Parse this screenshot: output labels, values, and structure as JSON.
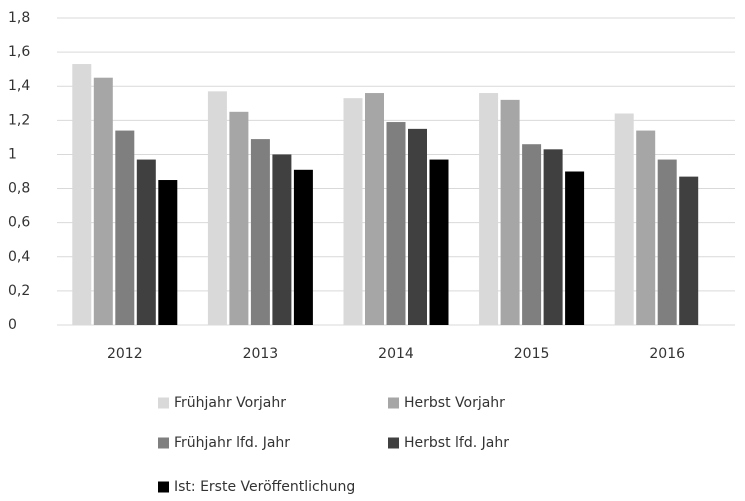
{
  "chart_data": {
    "type": "bar",
    "categories": [
      "2012",
      "2013",
      "2014",
      "2015",
      "2016"
    ],
    "series": [
      {
        "name": "Frühjahr Vorjahr",
        "color": "#d9d9d9",
        "values": [
          1.53,
          1.37,
          1.33,
          1.36,
          1.24
        ]
      },
      {
        "name": "Herbst Vorjahr",
        "color": "#a6a6a6",
        "values": [
          1.45,
          1.25,
          1.36,
          1.32,
          1.14
        ]
      },
      {
        "name": "Frühjahr lfd. Jahr",
        "color": "#7f7f7f",
        "values": [
          1.14,
          1.09,
          1.19,
          1.06,
          0.97
        ]
      },
      {
        "name": "Herbst lfd. Jahr",
        "color": "#404040",
        "values": [
          0.97,
          1.0,
          1.15,
          1.03,
          0.87
        ]
      },
      {
        "name": "Ist: Erste Veröffentlichung",
        "color": "#000000",
        "values": [
          0.85,
          0.91,
          0.97,
          0.9,
          null
        ]
      }
    ],
    "ylim": [
      0,
      1.8
    ],
    "yticks": [
      0,
      {
        "value": 0.2,
        "label": "0,2"
      },
      {
        "value": 0.4,
        "label": "0,4"
      },
      {
        "value": 0.6,
        "label": "0,6"
      },
      {
        "value": 0.8,
        "label": "0,8"
      },
      1,
      {
        "value": 1.2,
        "label": "1,2"
      },
      {
        "value": 1.4,
        "label": "1,4"
      },
      {
        "value": 1.6,
        "label": "1,6"
      },
      {
        "value": 1.8,
        "label": "1,8"
      }
    ],
    "grid": true,
    "legend": "bottom"
  }
}
